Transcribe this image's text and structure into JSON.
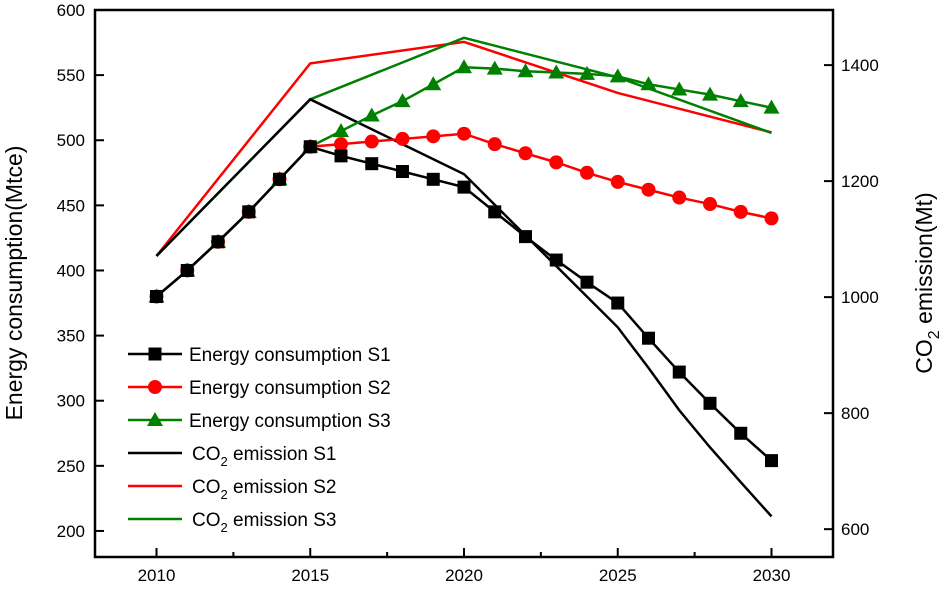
{
  "chart_data": {
    "type": "line",
    "title": "",
    "xlabel": "",
    "ylabel": "Energy consumption(Mtce)",
    "y2label": "CO2 emission(Mt)",
    "xlim": [
      2008,
      2032
    ],
    "ylim": [
      180,
      600
    ],
    "y2lim": [
      552,
      1495
    ],
    "xticks": [
      2010,
      2015,
      2020,
      2025,
      2030
    ],
    "yticks": [
      200,
      250,
      300,
      350,
      400,
      450,
      500,
      550,
      600
    ],
    "y2ticks": [
      600,
      800,
      1000,
      1200,
      1400
    ],
    "grid": false,
    "legend_position": "bottom-left",
    "series": [
      {
        "name": "Energy consumption S1",
        "axis": "left",
        "marker": "square",
        "color": "#000000",
        "x": [
          2010,
          2011,
          2012,
          2013,
          2014,
          2015,
          2016,
          2017,
          2018,
          2019,
          2020,
          2021,
          2022,
          2023,
          2024,
          2025,
          2026,
          2027,
          2028,
          2029,
          2030
        ],
        "y": [
          380,
          400,
          422,
          445,
          470,
          495,
          488,
          482,
          476,
          470,
          464,
          445,
          426,
          408,
          391,
          375,
          348,
          322,
          298,
          275,
          254
        ]
      },
      {
        "name": "Energy consumption S2",
        "axis": "left",
        "marker": "circle",
        "color": "#ff0000",
        "x": [
          2010,
          2011,
          2012,
          2013,
          2014,
          2015,
          2016,
          2017,
          2018,
          2019,
          2020,
          2021,
          2022,
          2023,
          2024,
          2025,
          2026,
          2027,
          2028,
          2029,
          2030
        ],
        "y": [
          380,
          400,
          422,
          445,
          470,
          495,
          497,
          499,
          501,
          503,
          505,
          497,
          490,
          483,
          475,
          468,
          462,
          456,
          451,
          445,
          440
        ]
      },
      {
        "name": "Energy consumption S3",
        "axis": "left",
        "marker": "triangle",
        "color": "#008000",
        "x": [
          2010,
          2011,
          2012,
          2013,
          2014,
          2015,
          2016,
          2017,
          2018,
          2019,
          2020,
          2021,
          2022,
          2023,
          2024,
          2025,
          2026,
          2027,
          2028,
          2029,
          2030
        ],
        "y": [
          380,
          400,
          422,
          445,
          470,
          495,
          507,
          519,
          530,
          543,
          556,
          555,
          553,
          552,
          551,
          549,
          543,
          539,
          535,
          530,
          525
        ]
      },
      {
        "name": "CO2 emission S1",
        "axis": "right",
        "marker": "none",
        "color": "#000000",
        "x": [
          2010,
          2015,
          2020,
          2025,
          2026,
          2027,
          2028,
          2029,
          2030
        ],
        "y": [
          1071,
          1341,
          1212,
          948,
          878,
          805,
          741,
          681,
          622
        ]
      },
      {
        "name": "CO2 emission S2",
        "axis": "right",
        "marker": "none",
        "color": "#ff0000",
        "x": [
          2010,
          2015,
          2020,
          2025,
          2030
        ],
        "y": [
          1071,
          1403,
          1440,
          1352,
          1284
        ]
      },
      {
        "name": "CO2 emission S3",
        "axis": "right",
        "marker": "none",
        "color": "#008000",
        "x": [
          2010,
          2015,
          2020,
          2025,
          2030
        ],
        "y": [
          1071,
          1341,
          1447,
          1379,
          1283
        ]
      }
    ],
    "legend": [
      {
        "main": "Energy consumption S1",
        "sub": ""
      },
      {
        "main": "Energy consumption S2",
        "sub": ""
      },
      {
        "main": "Energy consumption S3",
        "sub": ""
      },
      {
        "pre": "CO",
        "sub": "2",
        "main": " emission S1"
      },
      {
        "pre": "CO",
        "sub": "2",
        "main": " emission S2"
      },
      {
        "pre": "CO",
        "sub": "2",
        "main": " emission S3"
      }
    ]
  }
}
